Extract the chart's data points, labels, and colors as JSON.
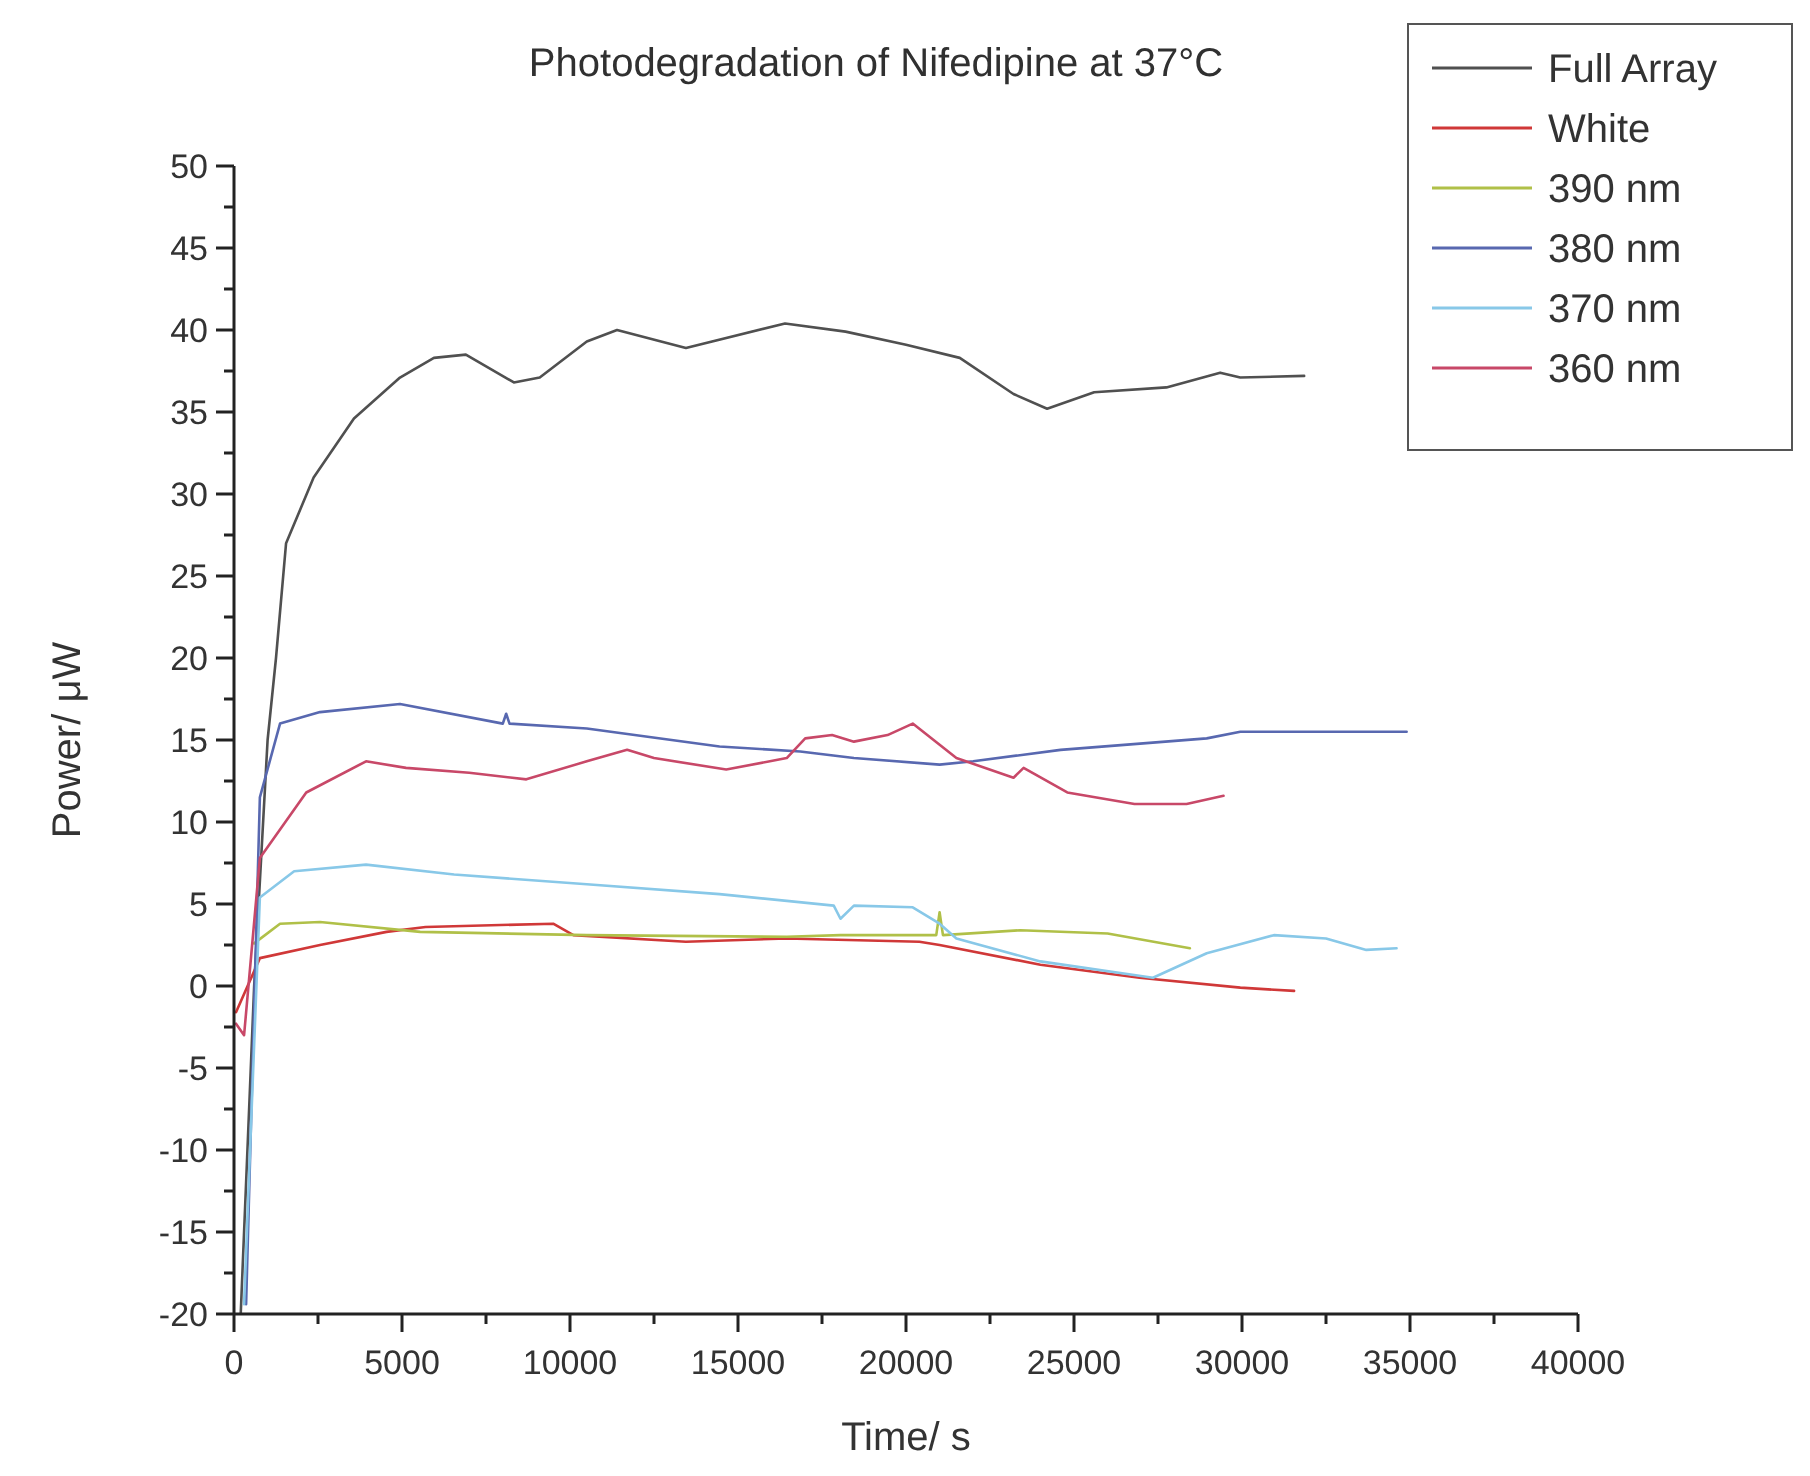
{
  "chart_data": {
    "type": "line",
    "title": "Photodegradation of Nifedipine at 37°C",
    "xlabel": "Time/ s",
    "ylabel": "Power/ μW",
    "xlim": [
      0,
      40000
    ],
    "ylim": [
      -20,
      50
    ],
    "xticks": [
      0,
      {
        "value": 2500,
        "label": null
      },
      5000,
      {
        "value": 7500,
        "label": null
      },
      10000,
      {
        "value": 12500,
        "label": null
      },
      15000,
      {
        "value": 17500,
        "label": null
      },
      20000,
      {
        "value": 22500,
        "label": null
      },
      25000,
      {
        "value": 27500,
        "label": null
      },
      30000,
      {
        "value": 32500,
        "label": null
      },
      35000,
      {
        "value": 37500,
        "label": null
      },
      40000
    ],
    "yticks": [
      -20,
      {
        "value": -17.5,
        "label": null
      },
      -15,
      {
        "value": -12.5,
        "label": null
      },
      -10,
      {
        "value": -7.5,
        "label": null
      },
      -5,
      {
        "value": -2.5,
        "label": null
      },
      0,
      {
        "value": 2.5,
        "label": null
      },
      5,
      {
        "value": 7.5,
        "label": null
      },
      10,
      {
        "value": 12.5,
        "label": null
      },
      15,
      {
        "value": 17.5,
        "label": null
      },
      20,
      {
        "value": 22.5,
        "label": null
      },
      25,
      {
        "value": 27.5,
        "label": null
      },
      30,
      {
        "value": 32.5,
        "label": null
      },
      35,
      {
        "value": 37.5,
        "label": null
      },
      40,
      {
        "value": 42.5,
        "label": null
      },
      45,
      {
        "value": 47.5,
        "label": null
      },
      50
    ],
    "grid": false,
    "legend": "top right",
    "line_style": "solid",
    "series": [
      {
        "name": "Full Array",
        "color": "#505050",
        "x": [
          200,
          600,
          1000,
          1250,
          1550,
          2370,
          3570,
          4940,
          5950,
          6900,
          8330,
          9100,
          10500,
          11400,
          13450,
          16400,
          18200,
          20000,
          21600,
          23200,
          24200,
          25600,
          27750,
          29350,
          29950,
          31850
        ],
        "values": [
          -20,
          0,
          15,
          20,
          27,
          31,
          34.6,
          37.1,
          38.3,
          38.5,
          36.8,
          37.1,
          39.3,
          40,
          38.9,
          40.4,
          39.9,
          39.1,
          38.3,
          36.1,
          35.2,
          36.2,
          36.5,
          37.4,
          37.1,
          37.2
        ]
      },
      {
        "name": "White",
        "color": "#d03838",
        "x": [
          60,
          770,
          2560,
          4540,
          5700,
          9500,
          10100,
          13450,
          16450,
          20400,
          21000,
          24000,
          26950,
          29950,
          31550
        ],
        "values": [
          -1.6,
          1.7,
          2.5,
          3.3,
          3.6,
          3.8,
          3.1,
          2.7,
          2.9,
          2.7,
          2.5,
          1.3,
          0.5,
          -0.1,
          -0.3
        ]
      },
      {
        "name": "390 nm",
        "color": "#b0c048",
        "x": [
          600,
          1370,
          2560,
          5540,
          10500,
          16450,
          18050,
          20900,
          21000,
          21100,
          23400,
          26000,
          28450
        ],
        "values": [
          2.6,
          3.8,
          3.9,
          3.3,
          3.1,
          3,
          3.1,
          3.1,
          4.5,
          3.1,
          3.4,
          3.2,
          2.3
        ]
      },
      {
        "name": "380 nm",
        "color": "#5868b0",
        "x": [
          360,
          770,
          1370,
          2560,
          4940,
          8000,
          8100,
          8200,
          10500,
          14450,
          16850,
          18450,
          21000,
          22000,
          24600,
          28950,
          29950,
          34900
        ],
        "values": [
          -19.4,
          11.5,
          16,
          16.7,
          17.2,
          16,
          16.6,
          16,
          15.7,
          14.6,
          14.3,
          13.9,
          13.5,
          13.7,
          14.4,
          15.1,
          15.5,
          15.5
        ]
      },
      {
        "name": "370 nm",
        "color": "#88c8e8",
        "x": [
          300,
          770,
          1790,
          3930,
          6550,
          10500,
          14450,
          17850,
          18050,
          18450,
          20200,
          21000,
          21500,
          24000,
          27350,
          28950,
          30950,
          32500,
          33700,
          34600
        ],
        "values": [
          -19.4,
          5.4,
          7,
          7.4,
          6.8,
          6.2,
          5.6,
          4.9,
          4.1,
          4.9,
          4.8,
          3.8,
          2.9,
          1.5,
          0.5,
          2,
          3.1,
          2.9,
          2.2,
          2.3
        ]
      },
      {
        "name": "360 nm",
        "color": "#c84868",
        "x": [
          60,
          300,
          770,
          2150,
          3930,
          5120,
          7000,
          8700,
          10500,
          11700,
          12500,
          14650,
          16450,
          17000,
          17800,
          18450,
          19450,
          20200,
          21500,
          23200,
          23500,
          24800,
          26800,
          28350,
          29450
        ],
        "values": [
          -2.3,
          -3,
          7.8,
          11.8,
          13.7,
          13.3,
          13,
          12.6,
          13.7,
          14.4,
          13.9,
          13.2,
          13.9,
          15.1,
          15.3,
          14.9,
          15.3,
          16,
          13.9,
          12.7,
          13.3,
          11.8,
          11.1,
          11.1,
          11.6
        ]
      }
    ]
  }
}
